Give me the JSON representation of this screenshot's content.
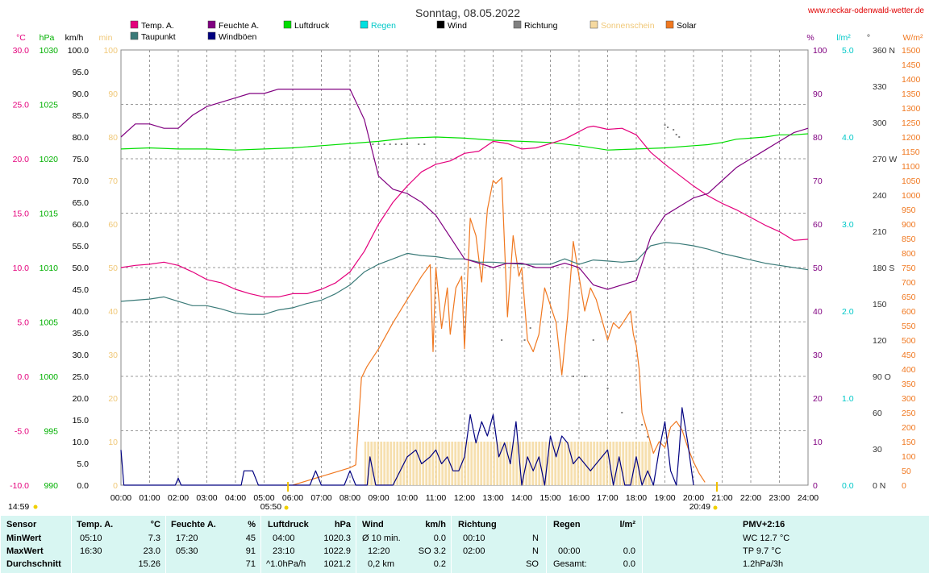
{
  "title": "Sonntag, 08.05.2022",
  "site": "www.neckar-odenwald-wetter.de",
  "legend": [
    {
      "label": "Temp. A.",
      "color": "#e4007c"
    },
    {
      "label": "Taupunkt",
      "color": "#3a7a78"
    },
    {
      "label": "Feuchte A.",
      "color": "#800080"
    },
    {
      "label": "Windböen",
      "color": "#000080"
    },
    {
      "label": "Luftdruck",
      "color": "#00dd00"
    },
    {
      "label": "Regen",
      "color": "#00e0e0"
    },
    {
      "label": "Wind",
      "color": "#000000"
    },
    {
      "label": "Richtung",
      "color": "#808080"
    },
    {
      "label": "Sonnenschein",
      "color": "#f5d9a0"
    },
    {
      "label": "Solar",
      "color": "#f07820"
    }
  ],
  "axis_units": {
    "temp": "°C",
    "pressure": "hPa",
    "wind": "km/h",
    "sunmin": "min",
    "humidity": "%",
    "rain": "l/m²",
    "direction": "°",
    "solar": "W/m²"
  },
  "axis_ticks": {
    "temp": [
      "30.0",
      "25.0",
      "20.0",
      "15.0",
      "10.0",
      "5.0",
      "0.0",
      "-5.0",
      "-10.0"
    ],
    "pressure": [
      "1030",
      "1025",
      "1020",
      "1015",
      "1010",
      "1005",
      "1000",
      "995",
      "990"
    ],
    "wind": [
      "100.0",
      "95.0",
      "90.0",
      "85.0",
      "80.0",
      "75.0",
      "70.0",
      "65.0",
      "60.0",
      "55.0",
      "50.0",
      "45.0",
      "40.0",
      "35.0",
      "30.0",
      "25.0",
      "20.0",
      "15.0",
      "10.0",
      "5.0",
      "0.0"
    ],
    "sunmin": [
      "100",
      "90",
      "80",
      "70",
      "60",
      "50",
      "40",
      "30",
      "20",
      "10",
      "0"
    ],
    "humidity": [
      "100",
      "90",
      "80",
      "70",
      "60",
      "50",
      "40",
      "30",
      "20",
      "10",
      "0"
    ],
    "rain": [
      "5.0",
      "4.0",
      "3.0",
      "2.0",
      "1.0",
      "0.0"
    ],
    "direction": [
      "360 N",
      "330",
      "300",
      "270 W",
      "240",
      "210",
      "180 S",
      "150",
      "120",
      "90 O",
      "60",
      "30",
      "0 N"
    ],
    "solar": [
      "1500",
      "1450",
      "1400",
      "1350",
      "1300",
      "1250",
      "1200",
      "1150",
      "1100",
      "1050",
      "1000",
      "950",
      "900",
      "850",
      "800",
      "750",
      "700",
      "650",
      "600",
      "550",
      "500",
      "450",
      "400",
      "350",
      "300",
      "250",
      "200",
      "150",
      "100",
      "50",
      "0"
    ],
    "time": [
      "00:00",
      "01:00",
      "02:00",
      "03:00",
      "04:00",
      "05:00",
      "06:00",
      "07:00",
      "08:00",
      "09:00",
      "10:00",
      "11:00",
      "12:00",
      "13:00",
      "14:00",
      "15:00",
      "16:00",
      "17:00",
      "18:00",
      "19:00",
      "20:00",
      "21:00",
      "22:00",
      "23:00",
      "24:00"
    ]
  },
  "sun_marks": {
    "sunrise": "05:50",
    "sunset": "20:49",
    "daylength": "14:59"
  },
  "chart_data": {
    "type": "line",
    "title": "Sonntag, 08.05.2022",
    "x_unit": "h",
    "xlim": [
      0,
      24
    ],
    "series": [
      {
        "name": "Temp. A.",
        "axis": "temp",
        "color": "#e4007c",
        "x": [
          0,
          0.5,
          1,
          1.5,
          2,
          2.5,
          3,
          3.5,
          4,
          4.5,
          5,
          5.5,
          6,
          6.5,
          7,
          7.5,
          8,
          8.5,
          9,
          9.5,
          10,
          10.5,
          11,
          11.5,
          12,
          12.5,
          13,
          13.5,
          14,
          14.5,
          15,
          15.5,
          16,
          16.3,
          16.5,
          17,
          17.5,
          18,
          18.5,
          19,
          19.5,
          20,
          20.5,
          21,
          21.5,
          22,
          22.5,
          23,
          23.5,
          24
        ],
        "y": [
          10.0,
          10.2,
          10.3,
          10.5,
          10.2,
          9.6,
          8.9,
          8.6,
          8.0,
          7.6,
          7.3,
          7.3,
          7.6,
          7.6,
          8.0,
          8.6,
          9.6,
          11.5,
          14.0,
          16.0,
          17.5,
          18.8,
          19.5,
          19.8,
          20.5,
          20.7,
          21.6,
          21.4,
          20.9,
          21.0,
          21.4,
          21.8,
          22.5,
          22.9,
          23.0,
          22.7,
          22.8,
          22.2,
          20.6,
          19.5,
          18.5,
          17.5,
          16.6,
          15.9,
          15.3,
          14.6,
          13.9,
          13.3,
          12.5,
          12.6
        ]
      },
      {
        "name": "Taupunkt",
        "axis": "temp",
        "color": "#3a7a78",
        "x": [
          0,
          1,
          1.5,
          2,
          2.5,
          3,
          3.5,
          4,
          4.5,
          5,
          5.5,
          6,
          6.5,
          7,
          7.5,
          8,
          8.5,
          9,
          9.5,
          10,
          10.5,
          11,
          11.5,
          12,
          12.5,
          13,
          13.5,
          14,
          14.5,
          15,
          15.5,
          16,
          16.5,
          17,
          17.5,
          18,
          18.5,
          19,
          19.5,
          20,
          20.5,
          21,
          21.5,
          22,
          22.5,
          23,
          23.5,
          24
        ],
        "y": [
          6.9,
          7.1,
          7.3,
          6.9,
          6.5,
          6.5,
          6.2,
          5.8,
          5.7,
          5.7,
          6.1,
          6.3,
          6.7,
          7.0,
          7.6,
          8.4,
          9.6,
          10.3,
          10.8,
          11.3,
          11.1,
          11.0,
          10.8,
          10.8,
          10.5,
          10.5,
          10.4,
          10.3,
          10.3,
          10.3,
          10.8,
          10.3,
          10.7,
          10.6,
          10.5,
          10.6,
          12.0,
          12.3,
          12.2,
          12.0,
          11.7,
          11.3,
          11.0,
          10.7,
          10.4,
          10.2,
          10.0,
          9.8
        ]
      },
      {
        "name": "Feuchte A.",
        "axis": "humidity",
        "color": "#800080",
        "x": [
          0,
          0.5,
          1,
          1.5,
          2,
          2.5,
          3,
          3.5,
          4,
          4.5,
          5,
          5.5,
          6,
          6.5,
          7,
          7.5,
          8,
          8.5,
          9,
          9.5,
          10,
          10.5,
          11,
          11.5,
          12,
          12.5,
          13,
          13.5,
          14,
          14.5,
          15,
          15.5,
          16,
          16.5,
          17,
          17.5,
          18,
          18.5,
          19,
          19.5,
          20,
          20.5,
          21,
          21.5,
          22,
          22.5,
          23,
          23.5,
          24
        ],
        "y": [
          80,
          83,
          83,
          82,
          82,
          85,
          87,
          88,
          89,
          90,
          90,
          91,
          91,
          91,
          91,
          91,
          91,
          84,
          71,
          68,
          67,
          65,
          62,
          57,
          52,
          51,
          50,
          51,
          51,
          50,
          50,
          51,
          50,
          46,
          45,
          46,
          47,
          57,
          62,
          64,
          66,
          67,
          70,
          73,
          75,
          77,
          79,
          81,
          82
        ]
      },
      {
        "name": "Luftdruck",
        "axis": "pressure",
        "color": "#00dd00",
        "x": [
          0,
          1,
          2,
          3,
          4,
          5,
          6,
          7,
          8,
          9,
          10,
          11,
          12,
          13,
          14,
          15,
          16,
          17,
          18,
          19,
          20,
          20.5,
          21,
          21.5,
          22,
          22.5,
          23,
          23.5,
          24
        ],
        "y": [
          1020.9,
          1021.0,
          1020.9,
          1020.9,
          1020.8,
          1020.9,
          1021.0,
          1021.2,
          1021.4,
          1021.6,
          1021.9,
          1022.0,
          1021.9,
          1021.7,
          1021.6,
          1021.5,
          1021.2,
          1020.8,
          1020.9,
          1021.0,
          1021.2,
          1021.3,
          1021.5,
          1021.8,
          1021.9,
          1022.0,
          1022.2,
          1022.2,
          1022.3
        ]
      },
      {
        "name": "Windböen",
        "axis": "wind",
        "color": "#000080",
        "x": [
          0,
          0.1,
          0.3,
          1.9,
          2.0,
          2.1,
          4.2,
          4.3,
          4.6,
          4.8,
          6.6,
          6.8,
          7.0,
          7.8,
          8.0,
          8.2,
          8.6,
          8.7,
          8.9,
          9.5,
          10.0,
          10.3,
          10.5,
          10.8,
          11.0,
          11.2,
          11.4,
          11.6,
          11.8,
          12.0,
          12.2,
          12.4,
          12.6,
          12.8,
          13.0,
          13.2,
          13.4,
          13.6,
          13.8,
          14.0,
          14.2,
          14.4,
          14.6,
          14.8,
          15.0,
          15.2,
          15.4,
          15.6,
          15.8,
          16.0,
          16.2,
          16.4,
          16.6,
          16.8,
          17.0,
          17.2,
          17.4,
          17.6,
          17.8,
          18.0,
          18.2,
          18.4,
          18.6,
          18.8,
          19.0,
          19.2,
          19.4,
          19.5,
          19.6,
          19.8,
          20.0
        ],
        "y": [
          8.1,
          0,
          0,
          0,
          1.6,
          0,
          0,
          3.3,
          3.3,
          0,
          0,
          3.3,
          0,
          0,
          3.3,
          0,
          0,
          6.5,
          0,
          0,
          6.5,
          8.1,
          4.9,
          6.5,
          8.1,
          4.9,
          6.5,
          3.3,
          3.3,
          6.5,
          16.2,
          9.7,
          14.6,
          11.3,
          16.2,
          6.5,
          9.7,
          4.9,
          14.6,
          0,
          6.5,
          3.3,
          6.5,
          0,
          11.3,
          6.5,
          11.3,
          9.7,
          4.9,
          6.5,
          4.9,
          3.3,
          4.9,
          6.5,
          8.1,
          0,
          6.5,
          0,
          0,
          6.5,
          0,
          3.3,
          0,
          8.1,
          14.6,
          3.3,
          0,
          8.1,
          17.8,
          9.7,
          0
        ]
      },
      {
        "name": "Solar",
        "axis": "solar",
        "color": "#f07820",
        "x": [
          6.0,
          6.5,
          7,
          7.5,
          8,
          8.2,
          8.4,
          8.6,
          9,
          9.5,
          10,
          10.5,
          10.8,
          10.9,
          11.0,
          11.2,
          11.4,
          11.5,
          11.7,
          11.9,
          12.0,
          12.2,
          12.4,
          12.6,
          12.8,
          13.0,
          13.1,
          13.3,
          13.5,
          13.7,
          13.9,
          14.0,
          14.2,
          14.4,
          14.6,
          14.8,
          15.0,
          15.2,
          15.4,
          15.6,
          15.8,
          16.0,
          16.2,
          16.4,
          16.6,
          16.8,
          17.0,
          17.2,
          17.4,
          17.6,
          17.8,
          17.9,
          18.0,
          18.1,
          18.2,
          18.4,
          18.6,
          18.8,
          19.0,
          19.2,
          19.4,
          19.6,
          19.8,
          20.0,
          20.2,
          20.4
        ],
        "y": [
          0,
          15,
          30,
          45,
          60,
          70,
          370,
          410,
          470,
          560,
          640,
          720,
          760,
          460,
          750,
          540,
          680,
          520,
          680,
          720,
          470,
          920,
          860,
          700,
          950,
          1050,
          1040,
          1060,
          580,
          860,
          720,
          750,
          500,
          460,
          520,
          680,
          620,
          560,
          380,
          580,
          840,
          720,
          600,
          680,
          640,
          570,
          500,
          560,
          540,
          570,
          600,
          520,
          480,
          400,
          250,
          180,
          110,
          150,
          130,
          200,
          220,
          190,
          130,
          80,
          40,
          10
        ]
      },
      {
        "name": "Sonnenschein",
        "axis": "sunmin",
        "color": "#f5d9a0",
        "type": "bar",
        "x": [
          8.5,
          18.5
        ],
        "y": [
          10,
          10
        ]
      },
      {
        "name": "Richtung",
        "axis": "direction",
        "color": "#808080",
        "type": "scatter",
        "x": [
          8.8,
          9.0,
          9.2,
          9.4,
          9.6,
          9.8,
          10.0,
          10.4,
          10.6,
          12.2,
          13.3,
          14.1,
          14.3,
          15.8,
          16.2,
          16.5,
          17.0,
          17.5,
          18.2,
          18.4,
          19.0,
          19.1,
          19.3,
          19.4,
          19.5
        ],
        "y": [
          282,
          282,
          282,
          282,
          282,
          282,
          282,
          282,
          282,
          180,
          120,
          120,
          130,
          90,
          90,
          120,
          80,
          60,
          50,
          40,
          298,
          296,
          294,
          290,
          288
        ]
      }
    ]
  },
  "summary": {
    "sensor": {
      "header": "Sensor",
      "rows": [
        "MinWert",
        "MaxWert",
        "Durchschnitt"
      ]
    },
    "temp": {
      "header": "Temp. A.",
      "unit": "°C",
      "times": [
        "05:10",
        "16:30",
        ""
      ],
      "values": [
        "7.3",
        "23.0",
        "15.26"
      ]
    },
    "humidity": {
      "header": "Feuchte A.",
      "unit": "%",
      "times": [
        "17:20",
        "05:30",
        ""
      ],
      "values": [
        "45",
        "91",
        "71"
      ]
    },
    "pressure": {
      "header": "Luftdruck",
      "unit": "hPa",
      "times": [
        "04:00",
        "23:10",
        "^1.0hPa/h"
      ],
      "values": [
        "1020.3",
        "1022.9",
        "1021.2"
      ]
    },
    "wind": {
      "header": "Wind",
      "unit": "km/h",
      "times": [
        "Ø 10 min.",
        "12:20",
        "0,2 km"
      ],
      "values": [
        "0.0",
        "SO 3.2",
        "0.2"
      ]
    },
    "direction": {
      "header": "Richtung",
      "times": [
        "00:10",
        "02:00",
        ""
      ],
      "values": [
        "N",
        "N",
        "SO"
      ]
    },
    "rain": {
      "header": "Regen",
      "unit": "l/m²",
      "times": [
        "",
        "00:00",
        "Gesamt:"
      ],
      "values": [
        "",
        "0.0",
        "0.0"
      ]
    },
    "pmv": {
      "header": "PMV+2:16",
      "rows": [
        "WC 12.7 °C",
        "TP 9.7 °C",
        "1.2hPa/3h"
      ]
    }
  }
}
